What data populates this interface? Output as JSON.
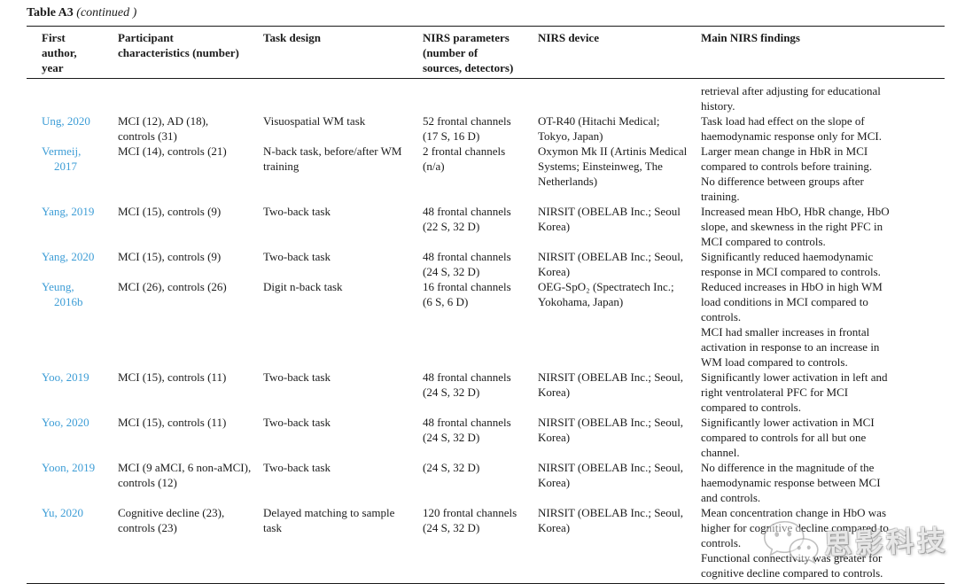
{
  "page": {
    "title": "Table A3",
    "title_suffix": "(continued )"
  },
  "colors": {
    "citation_link": "#3d9dd6",
    "text": "#1b1b1b"
  },
  "table": {
    "columns": [
      "First\nauthor,\nyear",
      "Participant\ncharacteristics (number)",
      "Task design",
      "NIRS parameters\n(number of\nsources, detectors)",
      "NIRS device",
      "Main NIRS findings"
    ],
    "rows": [
      {
        "author": "",
        "participants": "",
        "task": "",
        "parameters": "",
        "device": "",
        "findings": [
          "retrieval after adjusting for educational\nhistory."
        ]
      },
      {
        "author": "Ung, 2020",
        "participants": "MCI (12), AD (18),\ncontrols (31)",
        "task": "Visuospatial WM task",
        "parameters": "52 frontal channels\n(17 S, 16 D)",
        "device": "OT-R40 (Hitachi Medical;\nTokyo, Japan)",
        "findings": [
          "Task load had effect on the slope of\nhaemodynamic response only for MCI."
        ]
      },
      {
        "author": "Vermeij,\n2017",
        "participants": "MCI (14), controls (21)",
        "task": "N-back task, before/after WM\ntraining",
        "parameters": "2 frontal channels\n(n/a)",
        "device": "Oxymon Mk II (Artinis Medical\nSystems; Einsteinweg, The\nNetherlands)",
        "findings": [
          "Larger mean change in HbR in MCI\ncompared to controls before training.",
          "No difference between groups after\ntraining."
        ]
      },
      {
        "author": "Yang, 2019",
        "participants": "MCI (15), controls (9)",
        "task": "Two-back task",
        "parameters": "48 frontal channels\n(22 S, 32 D)",
        "device": "NIRSIT (OBELAB Inc.; Seoul\nKorea)",
        "findings": [
          "Increased mean HbO, HbR change, HbO\nslope, and skewness in the right PFC in\nMCI compared to controls."
        ]
      },
      {
        "author": "Yang, 2020",
        "participants": "MCI (15), controls (9)",
        "task": "Two-back task",
        "parameters": "48 frontal channels\n(24 S, 32 D)",
        "device": "NIRSIT (OBELAB Inc.; Seoul,\nKorea)",
        "findings": [
          "Significantly reduced haemodynamic\nresponse in MCI compared to controls."
        ]
      },
      {
        "author": "Yeung,\n2016b",
        "participants": "MCI (26), controls (26)",
        "task": "Digit n-back task",
        "parameters": "16 frontal channels\n(6 S, 6 D)",
        "device": "OEG-SpO₂ (Spectratech Inc.;\nYokohama, Japan)",
        "findings": [
          "Reduced increases in HbO in high WM\nload conditions in MCI compared to\ncontrols.",
          "MCI had smaller increases in frontal\nactivation in response to an increase in\nWM load compared to controls."
        ]
      },
      {
        "author": "Yoo, 2019",
        "participants": "MCI (15), controls (11)",
        "task": "Two-back task",
        "parameters": "48 frontal channels\n(24 S, 32 D)",
        "device": "NIRSIT (OBELAB Inc.; Seoul,\nKorea)",
        "findings": [
          "Significantly lower activation in left and\nright ventrolateral PFC for MCI\ncompared to controls."
        ]
      },
      {
        "author": "Yoo, 2020",
        "participants": "MCI (15), controls (11)",
        "task": "Two-back task",
        "parameters": "48 frontal channels\n(24 S, 32 D)",
        "device": "NIRSIT (OBELAB Inc.; Seoul,\nKorea)",
        "findings": [
          "Significantly lower activation in MCI\ncompared to controls for all but one\nchannel."
        ]
      },
      {
        "author": "Yoon, 2019",
        "participants": "MCI (9 aMCI, 6 non-aMCI),\ncontrols (12)",
        "task": "Two-back task",
        "parameters": "(24 S, 32 D)",
        "device": "NIRSIT (OBELAB Inc.; Seoul,\nKorea)",
        "findings": [
          "No difference in the magnitude of the\nhaemodynamic response between MCI\nand controls."
        ]
      },
      {
        "author": "Yu, 2020",
        "participants": "Cognitive decline (23),\ncontrols (23)",
        "task": "Delayed matching to sample\ntask",
        "parameters": "120 frontal channels\n(24 S, 32 D)",
        "device": "NIRSIT (OBELAB Inc.; Seoul,\nKorea)",
        "findings": [
          "Mean concentration change in HbO was\nhigher for cognitive decline compared to\ncontrols.",
          "Functional connectivity was greater for\ncognitive decline compared to controls."
        ]
      }
    ]
  },
  "watermark": {
    "text": "思影科技",
    "icon": "wechat-logo-icon"
  }
}
